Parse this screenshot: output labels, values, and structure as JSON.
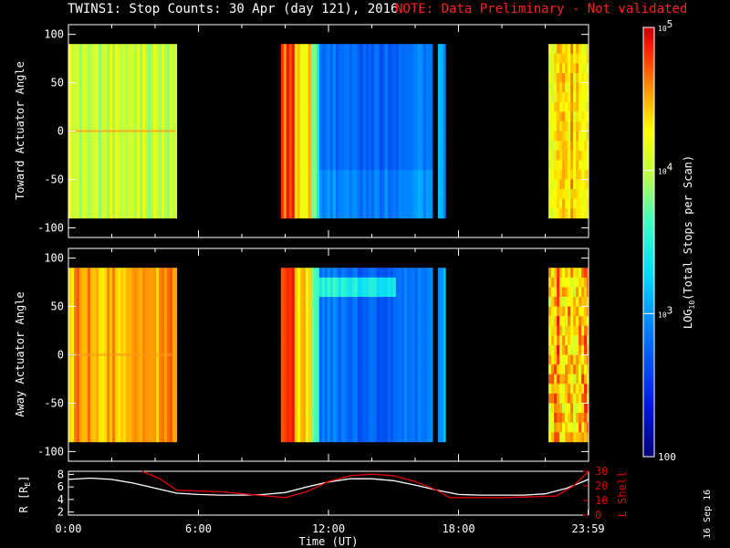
{
  "title": {
    "main": "TWINS1: Stop Counts: 30 Apr (day 121), 2016",
    "note": "NOTE: Data Preliminary - Not validated",
    "note_color": "#ff2020"
  },
  "stamp": "16 Sep 16",
  "chart_data": [
    {
      "type": "heatmap",
      "panel": "top",
      "ylabel": "Toward Actuator Angle",
      "ylim": [
        -110,
        110
      ],
      "yticks": [
        "100",
        "50",
        "0",
        "-50",
        "-100"
      ],
      "xlim_hours": [
        0,
        24
      ],
      "data_extent_deg": [
        -90,
        90
      ],
      "data_intervals_hours": [
        [
          0.0,
          5.0
        ],
        [
          9.8,
          16.8
        ],
        [
          17.05,
          17.4
        ],
        [
          22.15,
          24.0
        ]
      ]
    },
    {
      "type": "heatmap",
      "panel": "middle",
      "ylabel": "Away Actuator Angle",
      "ylim": [
        -110,
        110
      ],
      "yticks": [
        "100",
        "50",
        "0",
        "-50",
        "-100"
      ],
      "xlim_hours": [
        0,
        24
      ],
      "data_extent_deg": [
        -90,
        90
      ],
      "data_intervals_hours": [
        [
          0.0,
          5.0
        ],
        [
          9.8,
          16.8
        ],
        [
          17.05,
          17.4
        ],
        [
          22.15,
          24.0
        ]
      ]
    },
    {
      "type": "line",
      "panel": "bottom",
      "ylabel_left": "R [R",
      "ylabel_left_sub": "E",
      "ylabel_left_end": "]",
      "ylabel_right": "L Shell",
      "xlabel": "Time (UT)",
      "xticks": [
        "0:00",
        "6:00",
        "12:00",
        "18:00",
        "23:59"
      ],
      "yticks_left": [
        "8",
        "6",
        "4",
        "2"
      ],
      "yticks_right": [
        "30",
        "20",
        "10",
        "0"
      ],
      "ylim_left": [
        1.5,
        8.5
      ],
      "ylim_right": [
        0,
        30
      ],
      "series": [
        {
          "color": "#ffffff",
          "axis": "left",
          "x": [
            0,
            1,
            2,
            3,
            4,
            5,
            6,
            7,
            8,
            9,
            10,
            11,
            12,
            13,
            14,
            15,
            16,
            17,
            18,
            19,
            20,
            21,
            22,
            23,
            24
          ],
          "y": [
            7.2,
            7.4,
            7.2,
            6.6,
            5.8,
            5.0,
            4.8,
            4.7,
            4.7,
            4.8,
            5.1,
            6.0,
            6.8,
            7.3,
            7.3,
            7.0,
            6.3,
            5.5,
            4.8,
            4.7,
            4.7,
            4.7,
            4.9,
            5.8,
            7.2
          ]
        },
        {
          "color": "#e00000",
          "axis": "right",
          "x": [
            3.4,
            4.2,
            5.0,
            7.0,
            10.0,
            11.0,
            12.0,
            13.0,
            14.0,
            15.0,
            16.0,
            17.0,
            17.6,
            20.0,
            22.5,
            23.3,
            24.0
          ],
          "y": [
            30,
            25,
            17,
            16,
            12,
            16,
            23,
            27,
            28,
            27,
            23,
            17,
            12,
            12,
            13,
            20,
            30
          ]
        }
      ]
    }
  ],
  "colorbar": {
    "ticks": [
      "10^5",
      "10^4",
      "10^3",
      "100"
    ],
    "tick_base": "10",
    "tick_exp": [
      "5",
      "4",
      "3"
    ],
    "tick_plain": "100",
    "label_pre": "LOG",
    "label_sub": "10",
    "label_post": "(Total Stops per Scan)",
    "range_log": [
      2,
      5
    ]
  }
}
